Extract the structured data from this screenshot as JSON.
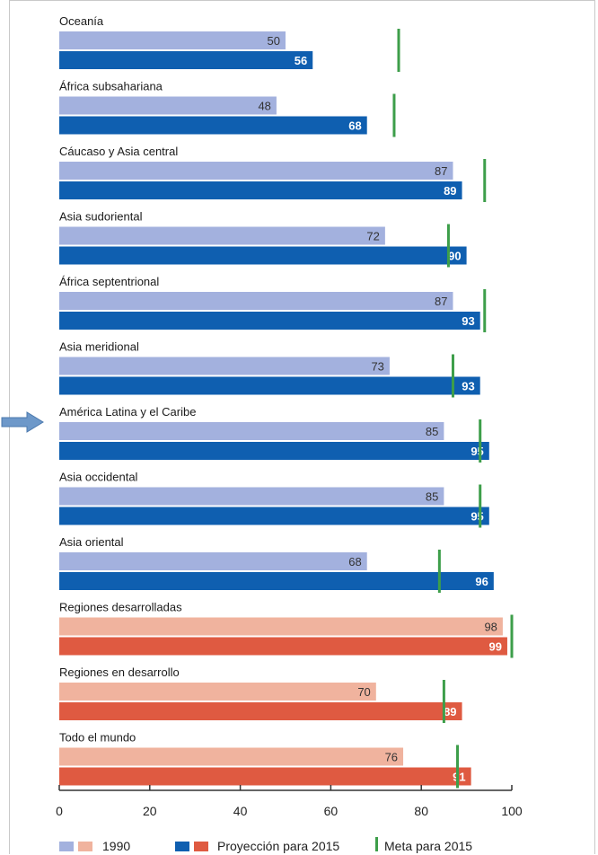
{
  "chart_data": {
    "type": "bar",
    "orientation": "horizontal",
    "categories": [
      "Oceanía",
      "África subsahariana",
      "Cáucaso y Asia central",
      "Asia sudoriental",
      "África septentrional",
      "Asia meridional",
      "América Latina y el Caribe",
      "Asia occidental",
      "Asia oriental",
      "Regiones desarrolladas",
      "Regiones en desarrollo",
      "Todo el mundo"
    ],
    "group": [
      "region",
      "region",
      "region",
      "region",
      "region",
      "region",
      "region",
      "region",
      "region",
      "aggregate",
      "aggregate",
      "aggregate"
    ],
    "series": [
      {
        "name": "1990",
        "values": [
          50,
          48,
          87,
          72,
          87,
          73,
          85,
          85,
          68,
          98,
          70,
          76
        ]
      },
      {
        "name": "Proyección para 2015",
        "values": [
          56,
          68,
          89,
          90,
          93,
          93,
          95,
          95,
          96,
          99,
          89,
          91
        ]
      }
    ],
    "targets": {
      "name": "Meta para 2015",
      "values": [
        75,
        74,
        94,
        86,
        94,
        87,
        93,
        93,
        84,
        100,
        85,
        88
      ]
    },
    "xticks": [
      0,
      20,
      40,
      60,
      80,
      100
    ],
    "xlim": [
      0,
      100
    ],
    "grid": false,
    "legend_position": "bottom",
    "highlighted_category": "América Latina y el Caribe",
    "colors": {
      "region_1990": "#a3b1de",
      "region_2015": "#0f5fb0",
      "aggregate_1990": "#f0b39e",
      "aggregate_2015": "#df5a41",
      "target": "#3d9e4a",
      "arrow": "#6d98c9",
      "axis": "#333333"
    }
  },
  "legend": {
    "label_1990": "1990",
    "label_2015": "Proyección para 2015",
    "label_target": "Meta para 2015"
  }
}
